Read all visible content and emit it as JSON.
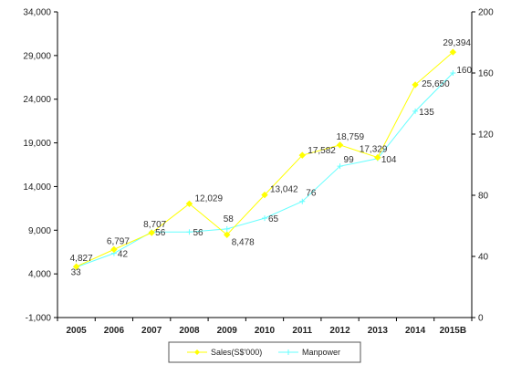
{
  "chart_data": {
    "type": "line",
    "title": "",
    "xlabel": "",
    "ylabel": "",
    "categories": [
      "2005",
      "2006",
      "2007",
      "2008",
      "2009",
      "2010",
      "2011",
      "2012",
      "2013",
      "2014",
      "2015B"
    ],
    "series": [
      {
        "name": "Sales(S$'000)",
        "axis": "left",
        "color": "#ffff00",
        "values": [
          4827,
          6797,
          8707,
          12029,
          8478,
          13042,
          17582,
          18759,
          17329,
          25650,
          29394
        ],
        "labels": [
          "4,827",
          "6,797",
          "8,707",
          "12,029",
          "8,478",
          "13,042",
          "17,582",
          "18,759",
          "17,329",
          "25,650",
          "29,394"
        ]
      },
      {
        "name": "Manpower",
        "axis": "right",
        "color": "#66ffff",
        "values": [
          33,
          42,
          56,
          56,
          58,
          65,
          76,
          99,
          104,
          135,
          160
        ],
        "labels": [
          "33",
          "42",
          "56",
          "56",
          "58",
          "65",
          "76",
          "99",
          "104",
          "135",
          "160"
        ]
      }
    ],
    "y_left": {
      "ylim": [
        -1000,
        34000
      ],
      "ticks": [
        -1000,
        4000,
        9000,
        14000,
        19000,
        24000,
        29000,
        34000
      ],
      "tick_labels": [
        "-1,000",
        "4,000",
        "9,000",
        "14,000",
        "19,000",
        "24,000",
        "29,000",
        "34,000"
      ]
    },
    "y_right": {
      "ylim": [
        0,
        200
      ],
      "ticks": [
        0,
        40,
        80,
        120,
        160,
        200
      ],
      "tick_labels": [
        "0",
        "40",
        "80",
        "120",
        "160",
        "200"
      ]
    },
    "grid": false,
    "legend_position": "bottom-center"
  }
}
